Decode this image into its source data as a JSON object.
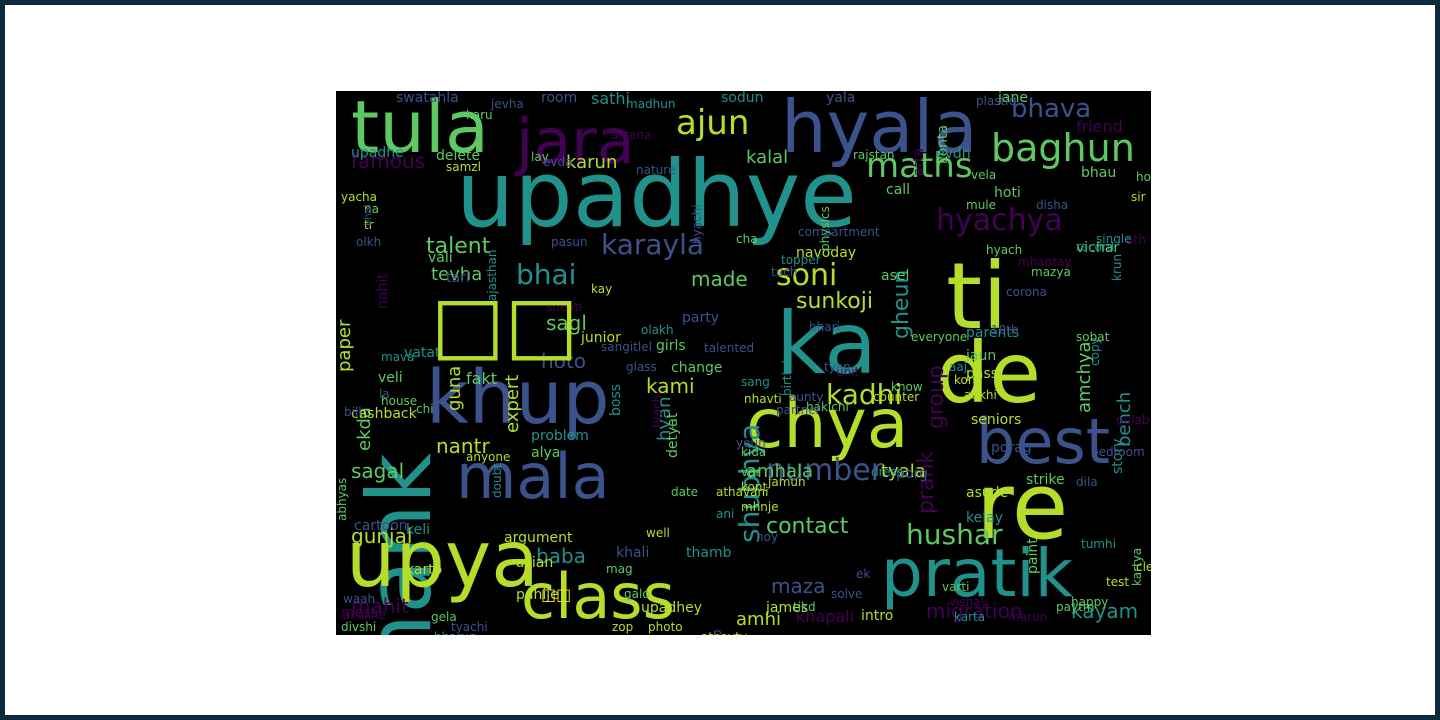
{
  "palette": [
    "#440154",
    "#3b528b",
    "#21918c",
    "#5ec962",
    "#b5de2b",
    "#fde725"
  ],
  "words": [
    "upadhye",
    "ti",
    "ka",
    "de",
    "re",
    "thank",
    "pratik",
    "chya",
    "best",
    "hyala",
    "upya",
    "khup",
    "mala",
    "class",
    "tula",
    "jara",
    "baghun",
    "maths",
    "hyachya",
    "soni",
    "bhava",
    "ajun",
    "karayla",
    "bhai",
    "number",
    "kadhi",
    "shubhya",
    "talent",
    "hushar",
    "contact",
    "sunkoji",
    "group",
    "gheun",
    "prank",
    "amchya",
    "bench",
    "famous",
    "gunjal",
    "sagal",
    "nantr",
    "mahit",
    "baba",
    "hoto",
    "kami",
    "migration",
    "kayam",
    "maza",
    "amhi",
    "khapali",
    "amhala",
    "tyala",
    "karun",
    "kalal",
    "tevha",
    "made",
    "sagl",
    "paper",
    "ekda",
    "fakt",
    "hyan",
    "friend",
    "bhau",
    "hoti",
    "call",
    "vela",
    "mule",
    "disha",
    "hyach",
    "vichar",
    "parents",
    "navoday",
    "asel",
    "jaun",
    "pass",
    "seniors",
    "story",
    "asude",
    "kelay",
    "paint",
    "kartya",
    "paytm",
    "strike",
    "porag",
    "porg",
    "dress",
    "intro",
    "james",
    "thamb",
    "upadhey",
    "khali",
    "asian",
    "pahije",
    "karto",
    "keli",
    "cartoon",
    "mess",
    "cashback",
    "abhyas",
    "veli",
    "vatat",
    "vali",
    "tari",
    "nahit",
    "delete",
    "upadhe",
    "swatahla",
    "room",
    "sathi",
    "sodun",
    "yala",
    "konta",
    "atta",
    "evdh",
    "jane",
    "guna",
    "expert",
    "junior",
    "party",
    "girls",
    "boss",
    "change",
    "detyat",
    "problem",
    "alya",
    "copy",
    "sobat",
    "everyone",
    "10th",
    "nhavti",
    "tyach",
    "hyachi",
    "topper",
    "pasun",
    "shevti",
    "rajasthan",
    "physics",
    "date",
    "well",
    "anyone",
    "doubt",
    "always",
    "zop",
    "photo",
    "athavty",
    "relationship",
    "tyachi",
    "divshi",
    "akashe",
    "waah",
    "gela",
    "argument",
    "galo",
    "solve",
    "ek",
    "tikd",
    "varti",
    "vishay",
    "karta",
    "marun",
    "happy",
    "test",
    "clear",
    "tumhi",
    "bedroom",
    "gulab",
    "consulting",
    "counter",
    "unit",
    "bhari",
    "kida",
    "var",
    "jamun",
    "kont",
    "mhnje",
    "ani",
    "athavani",
    "ankhi",
    "kon",
    "aaj",
    "corona",
    "mhantay",
    "mazya",
    "record",
    "sir",
    "6th",
    "krun",
    "single",
    "hobby",
    "compartment",
    "cha",
    "tuch",
    "mava",
    "kay",
    "house",
    "la",
    "bill",
    "sangitlel",
    "olakh",
    "talented",
    "glass",
    "sang",
    "birthday",
    "tyan",
    "yeun",
    "aunty",
    "know",
    "bakichi",
    "partner",
    "bharun",
    "chi",
    "tr",
    "na",
    "bhal",
    "yacha",
    "karu",
    "jevha",
    "madhun",
    "plastic",
    "samzl",
    "lay",
    "evda",
    "nature",
    "rajstan",
    "astana",
    "olkh",
    "mag",
    "dila",
    "hoy",
    "lai",
    "ch",
    "ata",
    "nhi",
    "tya"
  ],
  "unrendered_glyph": "□□"
}
